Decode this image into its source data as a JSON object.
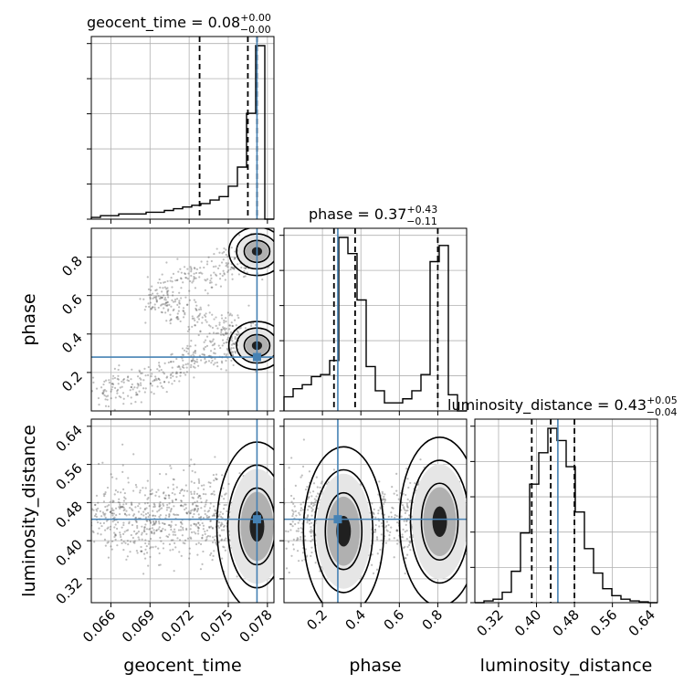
{
  "chart_data": {
    "type": "corner",
    "parameters": [
      {
        "name": "geocent_time",
        "range": [
          0.0645,
          0.0785
        ],
        "ticks": [
          "0.066",
          "0.069",
          "0.072",
          "0.075",
          "0.078"
        ],
        "tick_values": [
          0.066,
          0.069,
          0.072,
          0.075,
          0.078
        ],
        "truth": 0.0772,
        "quantiles": [
          0.0728,
          0.0765,
          0.0772
        ],
        "title": {
          "main": "geocent_time = 0.08",
          "sup": "+0.00",
          "sub": "−0.00"
        }
      },
      {
        "name": "phase",
        "range": [
          0.0,
          0.95
        ],
        "ticks": [
          "0.2",
          "0.4",
          "0.6",
          "0.8"
        ],
        "tick_values": [
          0.2,
          0.4,
          0.6,
          0.8
        ],
        "truth": 0.28,
        "quantiles": [
          0.26,
          0.37,
          0.8
        ],
        "title": {
          "main": "phase = 0.37",
          "sup": "+0.43",
          "sub": "−0.11"
        }
      },
      {
        "name": "luminosity_distance",
        "range": [
          0.27,
          0.655
        ],
        "ticks": [
          "0.32",
          "0.40",
          "0.48",
          "0.56",
          "0.64"
        ],
        "tick_values": [
          0.32,
          0.4,
          0.48,
          0.56,
          0.64
        ],
        "truth": 0.445,
        "quantiles": [
          0.39,
          0.43,
          0.48
        ],
        "title": {
          "main": "luminosity_distance = 0.43",
          "sup": "+0.05",
          "sub": "−0.04"
        }
      }
    ],
    "histograms": {
      "geocent_time": {
        "edges": [
          0.0645,
          0.0652,
          0.0659,
          0.0666,
          0.0673,
          0.068,
          0.0687,
          0.0694,
          0.0701,
          0.0708,
          0.0715,
          0.0722,
          0.0729,
          0.0736,
          0.0743,
          0.075,
          0.0757,
          0.0764,
          0.0771,
          0.0778,
          0.0785
        ],
        "counts": [
          0.01,
          0.02,
          0.02,
          0.03,
          0.03,
          0.03,
          0.04,
          0.04,
          0.05,
          0.06,
          0.07,
          0.08,
          0.09,
          0.11,
          0.13,
          0.19,
          0.3,
          0.61,
          1.0,
          0.0
        ]
      },
      "phase": {
        "edges": [
          0.0,
          0.0475,
          0.095,
          0.1425,
          0.19,
          0.2375,
          0.285,
          0.3325,
          0.38,
          0.4275,
          0.475,
          0.5225,
          0.57,
          0.6175,
          0.665,
          0.7125,
          0.76,
          0.8075,
          0.855,
          0.9025,
          0.95
        ],
        "counts": [
          0.07,
          0.11,
          0.13,
          0.17,
          0.18,
          0.25,
          0.86,
          0.78,
          0.55,
          0.22,
          0.1,
          0.04,
          0.04,
          0.06,
          0.1,
          0.18,
          0.74,
          0.82,
          0.08,
          0.0
        ]
      },
      "luminosity_distance": {
        "edges": [
          0.27,
          0.28925,
          0.3085,
          0.32775,
          0.347,
          0.36625,
          0.3855,
          0.40475,
          0.424,
          0.44325,
          0.4625,
          0.48175,
          0.501,
          0.52025,
          0.5395,
          0.55875,
          0.578,
          0.59725,
          0.6165,
          0.63575,
          0.655
        ],
        "counts": [
          0.0,
          0.01,
          0.02,
          0.06,
          0.18,
          0.4,
          0.68,
          0.86,
          1.0,
          0.93,
          0.78,
          0.52,
          0.31,
          0.17,
          0.08,
          0.04,
          0.02,
          0.01,
          0.005,
          0.0
        ]
      }
    },
    "joint": [
      {
        "x": "geocent_time",
        "y": "phase",
        "ridge": [
          [
            0.065,
            0.09
          ],
          [
            0.0665,
            0.12
          ],
          [
            0.068,
            0.15
          ],
          [
            0.0695,
            0.18
          ],
          [
            0.071,
            0.22
          ],
          [
            0.0725,
            0.26
          ],
          [
            0.074,
            0.31
          ],
          [
            0.0755,
            0.34
          ],
          [
            0.077,
            0.36
          ],
          [
            0.0772,
            0.34
          ],
          [
            0.076,
            0.4
          ],
          [
            0.0745,
            0.44
          ],
          [
            0.0725,
            0.49
          ],
          [
            0.0705,
            0.55
          ],
          [
            0.069,
            0.6
          ],
          [
            0.0705,
            0.65
          ],
          [
            0.0725,
            0.7
          ],
          [
            0.0745,
            0.75
          ],
          [
            0.076,
            0.79
          ],
          [
            0.0772,
            0.83
          ],
          [
            0.0775,
            0.86
          ]
        ],
        "modes": [
          [
            0.0772,
            0.34
          ],
          [
            0.0772,
            0.83
          ]
        ]
      },
      {
        "x": "geocent_time",
        "y": "luminosity_distance",
        "ridge": [
          [
            0.065,
            0.45
          ],
          [
            0.067,
            0.44
          ],
          [
            0.069,
            0.45
          ],
          [
            0.071,
            0.46
          ],
          [
            0.073,
            0.45
          ],
          [
            0.075,
            0.44
          ],
          [
            0.0765,
            0.44
          ],
          [
            0.0772,
            0.43
          ]
        ],
        "modes": [
          [
            0.0772,
            0.43
          ]
        ]
      },
      {
        "x": "phase",
        "y": "luminosity_distance",
        "ridge": [
          [
            0.05,
            0.45
          ],
          [
            0.15,
            0.44
          ],
          [
            0.25,
            0.43
          ],
          [
            0.32,
            0.42
          ],
          [
            0.4,
            0.44
          ],
          [
            0.55,
            0.45
          ],
          [
            0.7,
            0.45
          ],
          [
            0.8,
            0.44
          ],
          [
            0.88,
            0.45
          ]
        ],
        "modes": [
          [
            0.31,
            0.42
          ],
          [
            0.81,
            0.44
          ]
        ]
      }
    ],
    "colors": {
      "truth": "#4682b4",
      "contour": "#000000",
      "samples": "#444444"
    }
  }
}
